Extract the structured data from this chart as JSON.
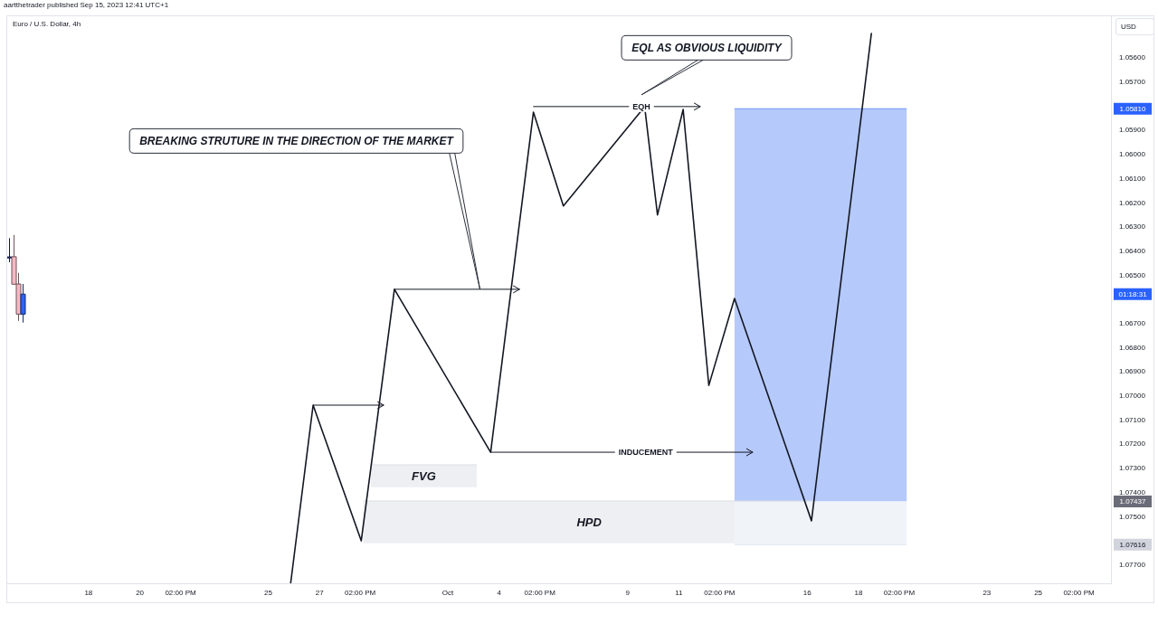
{
  "chart_data": {
    "type": "line",
    "title": "Euro / U.S. Dollar, 4h",
    "ylabel": "USD",
    "annotations": [
      "aartthetrader published Sep 15, 2023 12:41 UTC+1",
      {
        "text": "BREAKING STRUTURE IN THE DIRECTION OF THE MARKET",
        "x": "2023-10-03T06:00",
        "y": 1.06558
      },
      "EQL AS OBVIOUS LIQUIDITY",
      {
        "text": "EQH",
        "x": "2023-10-09T13:00",
        "y": 1.05801
      },
      {
        "text": "INDUCEMENT",
        "x": "2023-10-09T17:00",
        "y": 1.07233
      },
      "FVG",
      "HPD",
      "01:18:31",
      "1.05810",
      "1.07437",
      "1.07616"
    ],
    "xlim": [
      "2023-09-14T20:00",
      "2023-10-27T20:00"
    ],
    "xticks": [
      {
        "value": "2023-09-18",
        "label": "18"
      },
      {
        "value": "2023-09-20",
        "label": "20"
      },
      {
        "value": "2023-09-21T14:00",
        "label": "02:00 PM"
      },
      {
        "value": "2023-09-25",
        "label": "25"
      },
      {
        "value": "2023-09-27",
        "label": "27"
      },
      {
        "value": "2023-09-28T14:00",
        "label": "02:00 PM"
      },
      {
        "value": "2023-10-02",
        "label": "Oct"
      },
      {
        "value": "2023-10-04",
        "label": "4"
      },
      {
        "value": "2023-10-05T14:00",
        "label": "02:00 PM"
      },
      {
        "value": "2023-10-09",
        "label": "9"
      },
      {
        "value": "2023-10-11",
        "label": "11"
      },
      {
        "value": "2023-10-12T14:00",
        "label": "02:00 PM"
      },
      {
        "value": "2023-10-16",
        "label": "16"
      },
      {
        "value": "2023-10-18",
        "label": "18"
      },
      {
        "value": "2023-10-19T14:00",
        "label": "02:00 PM"
      },
      {
        "value": "2023-10-23",
        "label": "23"
      },
      {
        "value": "2023-10-25",
        "label": "25"
      },
      {
        "value": "2023-10-26T14:00",
        "label": "02:00 PM"
      }
    ],
    "ylim": [
      1.07776,
      1.05427
    ],
    "yticks": [
      {
        "value": 1.056,
        "label": "1.05600"
      },
      {
        "value": 1.057,
        "label": "1.05700"
      },
      {
        "value": 1.059,
        "label": "1.05900"
      },
      {
        "value": 1.06,
        "label": "1.06000"
      },
      {
        "value": 1.061,
        "label": "1.06100"
      },
      {
        "value": 1.062,
        "label": "1.06200"
      },
      {
        "value": 1.063,
        "label": "1.06300"
      },
      {
        "value": 1.064,
        "label": "1.06400"
      },
      {
        "value": 1.065,
        "label": "1.06500"
      },
      {
        "value": 1.067,
        "label": "1.06700"
      },
      {
        "value": 1.068,
        "label": "1.06800"
      },
      {
        "value": 1.069,
        "label": "1.06900"
      },
      {
        "value": 1.07,
        "label": "1.07000"
      },
      {
        "value": 1.071,
        "label": "1.07100"
      },
      {
        "value": 1.072,
        "label": "1.07200"
      },
      {
        "value": 1.073,
        "label": "1.07300"
      },
      {
        "value": 1.074,
        "label": "1.07400"
      },
      {
        "value": 1.075,
        "label": "1.07500"
      },
      {
        "value": 1.077,
        "label": "1.07700"
      }
    ],
    "series": [
      {
        "type": "line",
        "x": [
          "2023-09-28T17:00",
          "2023-10-16T07:00"
        ],
        "values": [
          1.07435,
          1.07435
        ],
        "lower": [
          1.07435,
          1.07435
        ],
        "upper": [
          1.0761,
          1.0761
        ],
        "color": "#dddfe5"
      },
      {
        "type": "line",
        "x": [
          "2023-09-29T00:00",
          "2023-10-03T03:00"
        ],
        "values": [
          1.07285,
          1.07285
        ],
        "lower": [
          1.07285,
          1.07285
        ],
        "upper": [
          1.07378,
          1.07378
        ],
        "color": "#dddfe5"
      },
      {
        "type": "line",
        "x": [
          "2023-10-13T04:00",
          "2023-10-19T21:00"
        ],
        "values": [
          1.0581,
          1.0581
        ],
        "lower": [
          1.0581,
          1.0581
        ],
        "upper": [
          1.07437,
          1.07437
        ],
        "color": "#6d93f7"
      },
      {
        "type": "line",
        "x": [
          "2023-10-13T04:00",
          "2023-10-19T21:00"
        ],
        "values": [
          1.07616,
          1.07616
        ],
        "lower": [
          1.07437,
          1.07437
        ],
        "upper": [
          1.07616,
          1.07616
        ],
        "color": "#e1e7f1"
      },
      {
        "type": "line",
        "color": "#131722",
        "x": [
          "2023-09-25T21:00",
          "2023-09-26T18:00",
          "2023-09-28T15:00",
          "2023-09-29T22:00",
          "2023-10-03T16:00",
          "2023-10-05T08:00",
          "2023-10-06T12:00",
          "2023-10-09T16:00",
          "2023-10-10T04:00",
          "2023-10-11T04:00",
          "2023-10-12T04:00",
          "2023-10-13T04:00",
          "2023-10-16T04:00",
          "2023-10-18T12:00"
        ],
        "values": [
          1.07776,
          1.07038,
          1.076,
          1.06558,
          1.07233,
          1.05824,
          1.06213,
          1.05802,
          1.0625,
          1.05813,
          1.06956,
          1.06596,
          1.07517,
          1.05498
        ]
      },
      {
        "type": "line",
        "color": "#131722",
        "x": [
          "2023-09-26T18:00",
          "2023-09-29T12:00"
        ],
        "values": [
          1.07038,
          1.07038
        ]
      },
      {
        "type": "line",
        "color": "#131722",
        "x": [
          "2023-09-29T22:00",
          "2023-10-04T19:00"
        ],
        "values": [
          1.06558,
          1.06558
        ]
      },
      {
        "type": "line",
        "color": "#131722",
        "x": [
          "2023-10-05T08:00",
          "2023-10-11T20:00"
        ],
        "values": [
          1.05801,
          1.05801
        ]
      },
      {
        "type": "line",
        "color": "#131722",
        "x": [
          "2023-10-03T16:00",
          "2023-10-13T21:00"
        ],
        "values": [
          1.07233,
          1.07233
        ]
      },
      {
        "type": "candlestick",
        "x": [
          "2023-09-14T22:00",
          "2023-09-15T02:00",
          "2023-09-15T06:00",
          "2023-09-15T10:00"
        ],
        "ohlc": [
          [
            1.06428,
            1.06446,
            1.06346,
            1.06424
          ],
          [
            1.06423,
            1.06537,
            1.06333,
            1.06537
          ],
          [
            1.06536,
            1.06689,
            1.0649,
            1.06661
          ],
          [
            1.06661,
            1.06696,
            1.06536,
            1.06578
          ]
        ],
        "colors": [
          "#24368f",
          "#f6b9c3",
          "#f6b9c3",
          "#2f63f5"
        ]
      }
    ]
  }
}
